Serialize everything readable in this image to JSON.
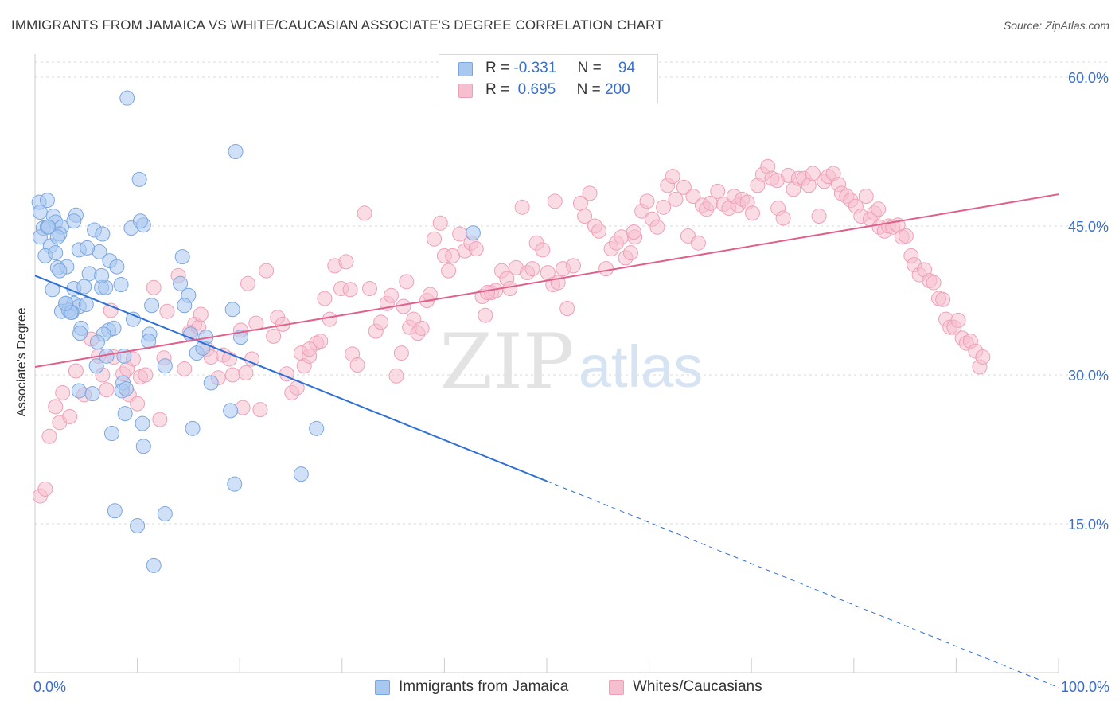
{
  "title": "IMMIGRANTS FROM JAMAICA VS WHITE/CAUCASIAN ASSOCIATE'S DEGREE CORRELATION CHART",
  "source": "Source: ZipAtlas.com",
  "watermark": {
    "zip": "ZIP",
    "atlas": "atlas"
  },
  "legend_top": [
    {
      "r_label": "R =",
      "r_value": "-0.331",
      "n_label": "N =",
      "n_value": "94"
    },
    {
      "r_label": "R =",
      "r_value": "0.695",
      "n_label": "N =",
      "n_value": "200"
    }
  ],
  "legend_bottom": [
    "Immigrants from Jamaica",
    "Whites/Caucasians"
  ],
  "colors": {
    "blue_fill": "#a9c8f0",
    "blue_stroke": "#7aa6e0",
    "blue_line": "#2e6fd6",
    "pink_fill": "#f6bfd0",
    "pink_stroke": "#eea0b8",
    "pink_line": "#e0608c",
    "grid": "#d9d9d9",
    "tick_label": "#3a6fc8"
  },
  "chart_data": {
    "type": "scatter",
    "title": "IMMIGRANTS FROM JAMAICA VS WHITE/CAUCASIAN ASSOCIATE'S DEGREE CORRELATION CHART",
    "xlabel": "",
    "ylabel": "Associate's Degree",
    "xlim": [
      0,
      100
    ],
    "ylim": [
      0,
      60
    ],
    "x_tick_labels": [
      "0.0%",
      "100.0%"
    ],
    "y_ticks": [
      15,
      30,
      45,
      60
    ],
    "y_tick_labels": [
      "15.0%",
      "30.0%",
      "45.0%",
      "60.0%"
    ],
    "grid": true,
    "series": [
      {
        "name": "Immigrants from Jamaica",
        "r": -0.331,
        "n": 94,
        "trend": {
          "x0": 0,
          "y0": 40.0,
          "x1": 50.0,
          "y1": 19.3,
          "dash_to_x": 100,
          "dash_to_y": -1.5
        },
        "points": [
          [
            0.4,
            47.4
          ],
          [
            1.2,
            47.6
          ],
          [
            0.5,
            46.4
          ],
          [
            1.8,
            46.0
          ],
          [
            2.0,
            45.4
          ],
          [
            4.0,
            46.1
          ],
          [
            0.8,
            44.8
          ],
          [
            1.2,
            44.9
          ],
          [
            2.6,
            44.9
          ],
          [
            3.8,
            45.5
          ],
          [
            5.8,
            44.6
          ],
          [
            0.5,
            43.9
          ],
          [
            1.5,
            43.0
          ],
          [
            2.4,
            44.2
          ],
          [
            6.6,
            44.2
          ],
          [
            9.4,
            44.8
          ],
          [
            10.6,
            45.1
          ],
          [
            10.3,
            45.5
          ],
          [
            1.0,
            42.0
          ],
          [
            2.0,
            42.3
          ],
          [
            4.3,
            42.6
          ],
          [
            6.3,
            42.4
          ],
          [
            5.1,
            42.8
          ],
          [
            2.2,
            40.8
          ],
          [
            3.1,
            40.9
          ],
          [
            7.3,
            41.5
          ],
          [
            8.0,
            40.9
          ],
          [
            14.4,
            41.9
          ],
          [
            5.3,
            40.2
          ],
          [
            2.4,
            40.5
          ],
          [
            1.7,
            38.6
          ],
          [
            3.8,
            38.7
          ],
          [
            4.8,
            38.9
          ],
          [
            6.5,
            38.8
          ],
          [
            8.4,
            39.1
          ],
          [
            14.2,
            39.2
          ],
          [
            6.9,
            38.8
          ],
          [
            15.0,
            38.0
          ],
          [
            3.0,
            37.2
          ],
          [
            3.8,
            37.2
          ],
          [
            4.3,
            36.9
          ],
          [
            5.0,
            37.1
          ],
          [
            2.6,
            36.4
          ],
          [
            3.3,
            36.5
          ],
          [
            3.6,
            36.3
          ],
          [
            11.4,
            37.0
          ],
          [
            14.6,
            37.0
          ],
          [
            19.3,
            36.6
          ],
          [
            3.5,
            36.3
          ],
          [
            9.6,
            35.6
          ],
          [
            4.5,
            34.7
          ],
          [
            7.2,
            34.5
          ],
          [
            7.7,
            34.7
          ],
          [
            4.4,
            34.2
          ],
          [
            6.7,
            34.1
          ],
          [
            11.2,
            34.1
          ],
          [
            15.2,
            34.1
          ],
          [
            16.7,
            33.8
          ],
          [
            20.1,
            33.8
          ],
          [
            6.1,
            33.3
          ],
          [
            11.1,
            33.4
          ],
          [
            7.0,
            31.9
          ],
          [
            8.7,
            31.9
          ],
          [
            15.8,
            32.2
          ],
          [
            16.4,
            32.7
          ],
          [
            6.0,
            30.9
          ],
          [
            12.7,
            30.9
          ],
          [
            8.6,
            29.2
          ],
          [
            17.2,
            29.2
          ],
          [
            4.3,
            28.4
          ],
          [
            8.5,
            28.4
          ],
          [
            5.6,
            28.1
          ],
          [
            8.9,
            28.6
          ],
          [
            19.1,
            26.4
          ],
          [
            8.8,
            26.1
          ],
          [
            10.5,
            25.1
          ],
          [
            15.4,
            24.6
          ],
          [
            27.5,
            24.6
          ],
          [
            7.5,
            24.1
          ],
          [
            10.6,
            22.8
          ],
          [
            26.0,
            20.0
          ],
          [
            19.5,
            19.0
          ],
          [
            7.8,
            16.3
          ],
          [
            12.7,
            16.0
          ],
          [
            10.0,
            14.8
          ],
          [
            11.6,
            10.8
          ],
          [
            9.0,
            57.9
          ],
          [
            19.6,
            52.5
          ],
          [
            10.2,
            49.7
          ],
          [
            42.8,
            44.3
          ],
          [
            3.0,
            37.2
          ],
          [
            1.3,
            44.9
          ],
          [
            6.5,
            40.0
          ],
          [
            2.2,
            43.9
          ]
        ]
      },
      {
        "name": "Whites/Caucasians",
        "r": 0.695,
        "n": 200,
        "trend": {
          "x0": 0,
          "y0": 30.8,
          "x1": 100,
          "y1": 48.2
        },
        "points": [
          [
            0.5,
            17.8
          ],
          [
            1.0,
            18.5
          ],
          [
            1.4,
            23.8
          ],
          [
            2.0,
            26.8
          ],
          [
            2.4,
            25.2
          ],
          [
            3.4,
            25.8
          ],
          [
            2.7,
            28.2
          ],
          [
            4.0,
            30.4
          ],
          [
            4.8,
            28.0
          ],
          [
            5.5,
            33.6
          ],
          [
            6.2,
            31.9
          ],
          [
            6.6,
            30.0
          ],
          [
            7.0,
            28.5
          ],
          [
            7.4,
            36.5
          ],
          [
            7.7,
            31.8
          ],
          [
            8.6,
            30.1
          ],
          [
            9.0,
            30.6
          ],
          [
            9.2,
            28.0
          ],
          [
            9.6,
            31.6
          ],
          [
            10.0,
            27.1
          ],
          [
            10.3,
            29.8
          ],
          [
            10.8,
            30.0
          ],
          [
            11.6,
            38.8
          ],
          [
            12.2,
            25.5
          ],
          [
            12.6,
            31.7
          ],
          [
            12.9,
            36.4
          ],
          [
            14.0,
            40.0
          ],
          [
            14.6,
            30.6
          ],
          [
            15.1,
            34.3
          ],
          [
            15.6,
            35.1
          ],
          [
            16.0,
            34.8
          ],
          [
            16.2,
            36.1
          ],
          [
            16.8,
            32.6
          ],
          [
            17.2,
            31.8
          ],
          [
            17.9,
            29.7
          ],
          [
            18.4,
            32.0
          ],
          [
            19.0,
            31.6
          ],
          [
            19.3,
            30.0
          ],
          [
            20.3,
            26.7
          ],
          [
            20.6,
            30.2
          ],
          [
            20.8,
            39.2
          ],
          [
            21.2,
            31.6
          ],
          [
            21.6,
            35.2
          ],
          [
            22.0,
            26.5
          ],
          [
            22.6,
            40.5
          ],
          [
            23.3,
            33.9
          ],
          [
            23.7,
            35.8
          ],
          [
            24.2,
            35.1
          ],
          [
            24.6,
            30.1
          ],
          [
            25.1,
            28.2
          ],
          [
            25.6,
            28.7
          ],
          [
            26.0,
            32.2
          ],
          [
            26.3,
            30.9
          ],
          [
            26.8,
            31.9
          ],
          [
            27.5,
            33.2
          ],
          [
            27.9,
            33.4
          ],
          [
            28.3,
            37.7
          ],
          [
            28.8,
            35.6
          ],
          [
            29.3,
            41.0
          ],
          [
            29.9,
            38.7
          ],
          [
            30.4,
            41.4
          ],
          [
            30.8,
            38.6
          ],
          [
            31.0,
            32.1
          ],
          [
            31.5,
            31.0
          ],
          [
            32.2,
            46.3
          ],
          [
            32.7,
            38.7
          ],
          [
            33.3,
            34.4
          ],
          [
            33.8,
            35.3
          ],
          [
            34.4,
            37.2
          ],
          [
            34.8,
            38.0
          ],
          [
            35.3,
            29.9
          ],
          [
            35.8,
            32.2
          ],
          [
            36.3,
            39.4
          ],
          [
            36.6,
            34.8
          ],
          [
            37.0,
            35.6
          ],
          [
            37.4,
            34.2
          ],
          [
            37.8,
            34.7
          ],
          [
            38.3,
            37.5
          ],
          [
            38.6,
            38.1
          ],
          [
            39.0,
            43.7
          ],
          [
            39.6,
            45.3
          ],
          [
            40.0,
            42.0
          ],
          [
            40.4,
            40.5
          ],
          [
            40.8,
            42.0
          ],
          [
            41.5,
            44.2
          ],
          [
            42.0,
            42.5
          ],
          [
            42.6,
            43.3
          ],
          [
            43.1,
            42.7
          ],
          [
            43.7,
            37.9
          ],
          [
            44.0,
            36.0
          ],
          [
            44.6,
            38.3
          ],
          [
            45.0,
            38.5
          ],
          [
            45.6,
            40.5
          ],
          [
            46.1,
            39.7
          ],
          [
            46.4,
            38.7
          ],
          [
            47.0,
            40.8
          ],
          [
            47.6,
            46.9
          ],
          [
            48.1,
            40.3
          ],
          [
            48.6,
            40.7
          ],
          [
            49.0,
            43.3
          ],
          [
            49.6,
            42.6
          ],
          [
            50.1,
            40.3
          ],
          [
            50.6,
            39.1
          ],
          [
            51.1,
            39.3
          ],
          [
            51.6,
            40.7
          ],
          [
            52.0,
            36.7
          ],
          [
            52.6,
            41.0
          ],
          [
            53.3,
            47.3
          ],
          [
            53.7,
            46.0
          ],
          [
            54.2,
            48.3
          ],
          [
            54.7,
            45.0
          ],
          [
            55.1,
            44.5
          ],
          [
            55.8,
            40.7
          ],
          [
            56.3,
            42.7
          ],
          [
            56.8,
            43.3
          ],
          [
            57.3,
            43.9
          ],
          [
            57.7,
            41.8
          ],
          [
            58.2,
            42.3
          ],
          [
            58.6,
            43.9
          ],
          [
            59.3,
            46.5
          ],
          [
            59.8,
            47.5
          ],
          [
            60.3,
            45.7
          ],
          [
            60.8,
            44.9
          ],
          [
            61.4,
            46.9
          ],
          [
            61.8,
            49.1
          ],
          [
            62.3,
            50.0
          ],
          [
            62.6,
            47.7
          ],
          [
            63.4,
            48.9
          ],
          [
            63.8,
            44.0
          ],
          [
            64.3,
            48.0
          ],
          [
            64.8,
            43.3
          ],
          [
            65.2,
            47.1
          ],
          [
            65.6,
            46.7
          ],
          [
            66.0,
            47.3
          ],
          [
            66.7,
            48.5
          ],
          [
            67.3,
            47.2
          ],
          [
            67.8,
            46.8
          ],
          [
            68.3,
            48.0
          ],
          [
            68.7,
            47.1
          ],
          [
            69.1,
            47.7
          ],
          [
            69.6,
            47.4
          ],
          [
            70.1,
            46.3
          ],
          [
            70.6,
            49.1
          ],
          [
            71.1,
            50.2
          ],
          [
            71.6,
            51.0
          ],
          [
            72.0,
            49.8
          ],
          [
            72.6,
            46.8
          ],
          [
            73.1,
            45.8
          ],
          [
            73.6,
            50.1
          ],
          [
            74.1,
            48.7
          ],
          [
            74.6,
            49.8
          ],
          [
            75.1,
            49.8
          ],
          [
            75.6,
            49.1
          ],
          [
            76.0,
            50.3
          ],
          [
            76.6,
            46.0
          ],
          [
            77.1,
            49.5
          ],
          [
            77.5,
            50.0
          ],
          [
            78.0,
            50.3
          ],
          [
            78.5,
            49.2
          ],
          [
            78.8,
            48.3
          ],
          [
            79.3,
            48.0
          ],
          [
            79.7,
            47.6
          ],
          [
            80.2,
            47.0
          ],
          [
            80.7,
            46.0
          ],
          [
            81.2,
            48.0
          ],
          [
            81.6,
            45.7
          ],
          [
            82.0,
            46.3
          ],
          [
            82.5,
            44.9
          ],
          [
            83.0,
            44.5
          ],
          [
            83.4,
            45.0
          ],
          [
            83.8,
            44.9
          ],
          [
            84.3,
            45.1
          ],
          [
            84.7,
            43.9
          ],
          [
            85.1,
            44.0
          ],
          [
            85.6,
            42.0
          ],
          [
            85.9,
            41.1
          ],
          [
            86.4,
            40.1
          ],
          [
            86.9,
            40.6
          ],
          [
            87.4,
            39.5
          ],
          [
            87.8,
            39.3
          ],
          [
            88.3,
            37.7
          ],
          [
            88.7,
            37.6
          ],
          [
            89.0,
            35.6
          ],
          [
            89.4,
            34.8
          ],
          [
            89.8,
            34.8
          ],
          [
            90.2,
            35.5
          ],
          [
            90.6,
            33.7
          ],
          [
            91.0,
            33.2
          ],
          [
            91.4,
            33.4
          ],
          [
            91.9,
            32.4
          ],
          [
            92.3,
            30.8
          ],
          [
            92.6,
            31.8
          ],
          [
            82.4,
            46.7
          ],
          [
            72.5,
            49.6
          ],
          [
            58.5,
            44.4
          ],
          [
            50.8,
            47.5
          ],
          [
            44.2,
            38.3
          ],
          [
            36.0,
            36.9
          ],
          [
            26.8,
            32.6
          ],
          [
            20.1,
            34.5
          ]
        ]
      }
    ]
  }
}
